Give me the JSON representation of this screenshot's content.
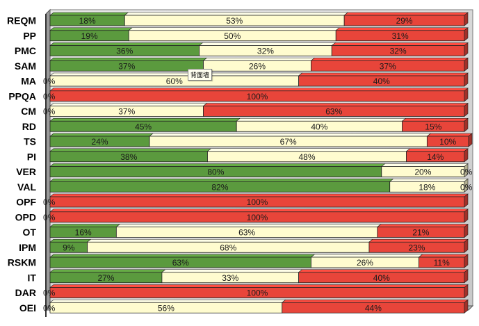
{
  "chart_data": {
    "type": "bar",
    "orientation": "horizontal",
    "stacked": "percent",
    "title": "",
    "xlabel": "",
    "ylabel": "",
    "xlim": [
      0,
      100
    ],
    "grid": false,
    "legend": "none",
    "categories": [
      "REQM",
      "PP",
      "PMC",
      "SAM",
      "MA",
      "PPQA",
      "CM",
      "RD",
      "TS",
      "PI",
      "VER",
      "VAL",
      "OPF",
      "OPD",
      "OT",
      "IPM",
      "RSKM",
      "IT",
      "DAR",
      "OEI"
    ],
    "series": [
      {
        "color": "#5b9a3e",
        "values": [
          18,
          19,
          36,
          37,
          0,
          0,
          0,
          45,
          24,
          38,
          80,
          82,
          0,
          0,
          16,
          9,
          63,
          27,
          0,
          0
        ],
        "labels": [
          "18%",
          "19%",
          "36%",
          "37%",
          "0%",
          "0%",
          "0%",
          "45%",
          "24%",
          "38%",
          "80%",
          "82%",
          "0%",
          "0%",
          "16%",
          "9%",
          "63%",
          "27%",
          "0%",
          "0%"
        ]
      },
      {
        "color": "#fffccf",
        "values": [
          53,
          50,
          32,
          26,
          60,
          0,
          37,
          40,
          67,
          48,
          20,
          18,
          0,
          0,
          63,
          68,
          26,
          33,
          0,
          56
        ],
        "labels": [
          "53%",
          "50%",
          "32%",
          "26%",
          "60%",
          "",
          "37%",
          "40%",
          "67%",
          "48%",
          "20%",
          "18%",
          "",
          "",
          "63%",
          "68%",
          "26%",
          "33%",
          "",
          "56%"
        ]
      },
      {
        "color": "#e8453a",
        "values": [
          29,
          31,
          32,
          37,
          40,
          100,
          63,
          15,
          10,
          14,
          0,
          0,
          100,
          100,
          21,
          23,
          11,
          40,
          100,
          44
        ],
        "labels": [
          "29%",
          "31%",
          "32%",
          "37%",
          "40%",
          "100%",
          "63%",
          "15%",
          "10%",
          "14%",
          "0%",
          "0%",
          "100%",
          "100%",
          "21%",
          "23%",
          "11%",
          "40%",
          "100%",
          "44%"
        ]
      }
    ]
  },
  "tooltip": {
    "text": "背面墙"
  }
}
